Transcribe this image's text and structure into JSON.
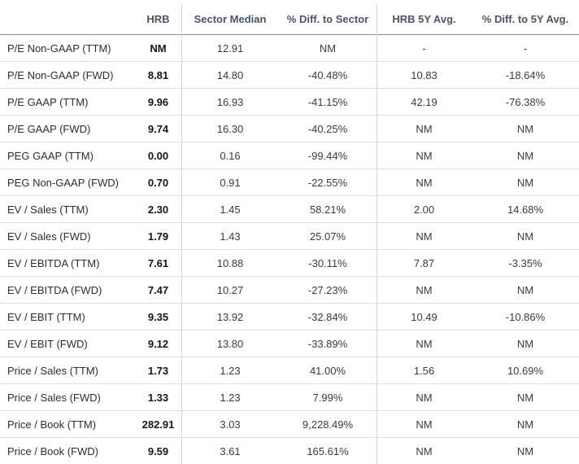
{
  "header": {
    "columns": [
      "",
      "HRB",
      "Sector Median",
      "% Diff. to Sector",
      "HRB 5Y Avg.",
      "% Diff. to 5Y Avg."
    ]
  },
  "rows": [
    {
      "label": "P/E Non-GAAP (TTM)",
      "values": [
        "NM",
        "12.91",
        "NM",
        "-",
        "-"
      ]
    },
    {
      "label": "P/E Non-GAAP (FWD)",
      "values": [
        "8.81",
        "14.80",
        "-40.48%",
        "10.83",
        "-18.64%"
      ]
    },
    {
      "label": "P/E GAAP (TTM)",
      "values": [
        "9.96",
        "16.93",
        "-41.15%",
        "42.19",
        "-76.38%"
      ]
    },
    {
      "label": "P/E GAAP (FWD)",
      "values": [
        "9.74",
        "16.30",
        "-40.25%",
        "NM",
        "NM"
      ]
    },
    {
      "label": "PEG GAAP (TTM)",
      "values": [
        "0.00",
        "0.16",
        "-99.44%",
        "NM",
        "NM"
      ]
    },
    {
      "label": "PEG Non-GAAP (FWD)",
      "values": [
        "0.70",
        "0.91",
        "-22.55%",
        "NM",
        "NM"
      ]
    },
    {
      "label": "EV / Sales (TTM)",
      "values": [
        "2.30",
        "1.45",
        "58.21%",
        "2.00",
        "14.68%"
      ]
    },
    {
      "label": "EV / Sales (FWD)",
      "values": [
        "1.79",
        "1.43",
        "25.07%",
        "NM",
        "NM"
      ]
    },
    {
      "label": "EV / EBITDA (TTM)",
      "values": [
        "7.61",
        "10.88",
        "-30.11%",
        "7.87",
        "-3.35%"
      ]
    },
    {
      "label": "EV / EBITDA (FWD)",
      "values": [
        "7.47",
        "10.27",
        "-27.23%",
        "NM",
        "NM"
      ]
    },
    {
      "label": "EV / EBIT (TTM)",
      "values": [
        "9.35",
        "13.92",
        "-32.84%",
        "10.49",
        "-10.86%"
      ]
    },
    {
      "label": "EV / EBIT (FWD)",
      "values": [
        "9.12",
        "13.80",
        "-33.89%",
        "NM",
        "NM"
      ]
    },
    {
      "label": "Price / Sales (TTM)",
      "values": [
        "1.73",
        "1.23",
        "41.00%",
        "1.56",
        "10.69%"
      ]
    },
    {
      "label": "Price / Sales (FWD)",
      "values": [
        "1.33",
        "1.23",
        "7.99%",
        "NM",
        "NM"
      ]
    },
    {
      "label": "Price / Book (TTM)",
      "values": [
        "282.91",
        "3.03",
        "9,228.49%",
        "NM",
        "NM"
      ]
    },
    {
      "label": "Price / Book (FWD)",
      "values": [
        "9.59",
        "3.61",
        "165.61%",
        "NM",
        "NM"
      ]
    }
  ],
  "colors": {
    "header_text": "#4a5568",
    "label_text": "#2d2d2d",
    "value_text": "#3a3a3a",
    "hrb_value_text": "#151515",
    "row_border": "#dedede",
    "header_border": "#8f8f8f",
    "column_divider": "#d5d5d5"
  }
}
